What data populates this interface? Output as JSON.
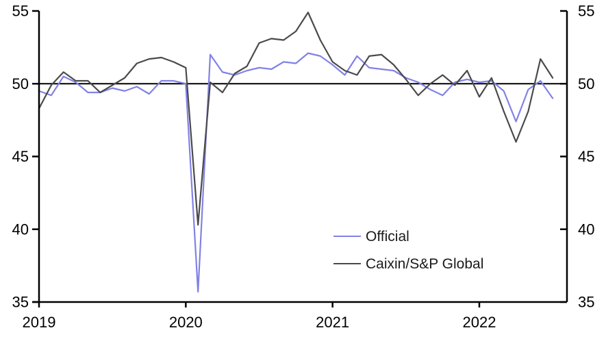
{
  "figure": {
    "background": "#ffffff",
    "axis_color": "#000000",
    "reference_line_color": "#000000"
  },
  "legend": {
    "items": [
      {
        "label": "Official",
        "color": "#8181e6"
      },
      {
        "label": "Caixin/S&P Global",
        "color": "#4a4a4a"
      }
    ]
  },
  "chart_data": {
    "type": "line",
    "title": "",
    "xlabel": "",
    "ylabel": "",
    "frequency": "monthly",
    "x_start": "2019-01",
    "x_end": "2022-07",
    "x_tick_labels": [
      "2019",
      "2020",
      "2021",
      "2022"
    ],
    "y_ticks": [
      55,
      50,
      45,
      40,
      35
    ],
    "ylim": [
      35,
      55
    ],
    "y_axis_sides": [
      "left",
      "right"
    ],
    "reference_line_y": 50,
    "grid": false,
    "legend_position": "inside-lower-right",
    "series": [
      {
        "name": "Official",
        "color": "#8181e6",
        "values": [
          49.5,
          49.2,
          50.5,
          50.1,
          49.4,
          49.4,
          49.7,
          49.5,
          49.8,
          49.3,
          50.2,
          50.2,
          50.0,
          35.7,
          52.0,
          50.8,
          50.6,
          50.9,
          51.1,
          51.0,
          51.5,
          51.4,
          52.1,
          51.9,
          51.3,
          50.6,
          51.9,
          51.1,
          51.0,
          50.9,
          50.4,
          50.1,
          49.6,
          49.2,
          50.1,
          50.3,
          50.1,
          50.2,
          49.5,
          47.4,
          49.6,
          50.2,
          49.0
        ]
      },
      {
        "name": "Caixin/S&P Global",
        "color": "#4a4a4a",
        "values": [
          48.3,
          49.9,
          50.8,
          50.2,
          50.2,
          49.4,
          49.9,
          50.4,
          51.4,
          51.7,
          51.8,
          51.5,
          51.1,
          40.3,
          50.1,
          49.4,
          50.7,
          51.2,
          52.8,
          53.1,
          53.0,
          53.6,
          54.9,
          53.0,
          51.5,
          50.9,
          50.6,
          51.9,
          52.0,
          51.3,
          50.3,
          49.2,
          50.0,
          50.6,
          49.9,
          50.9,
          49.1,
          50.4,
          48.1,
          46.0,
          48.1,
          51.7,
          50.4
        ]
      }
    ]
  }
}
